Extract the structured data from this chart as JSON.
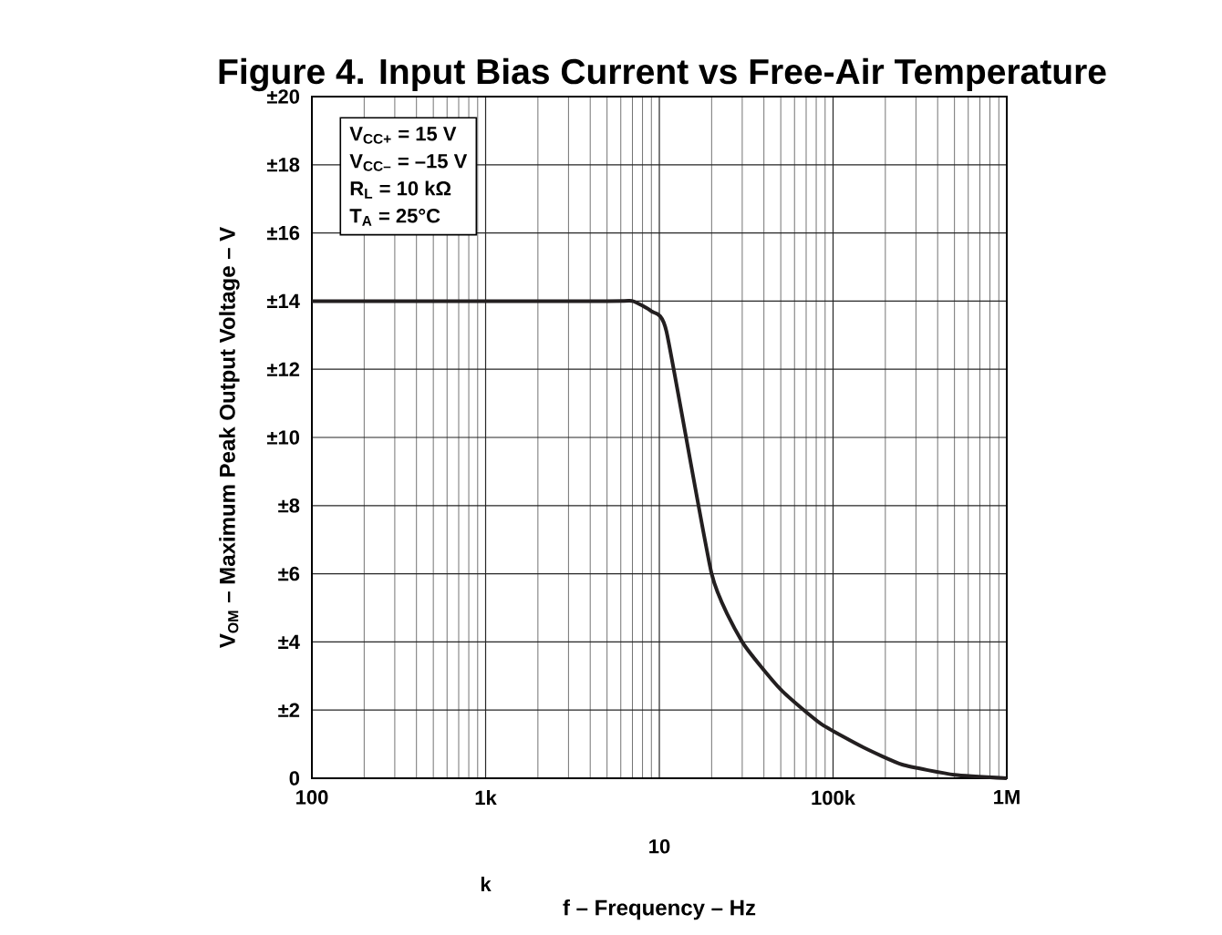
{
  "chart_data": {
    "type": "line",
    "title": "Figure 4. Input Bias Current vs Free-Air Temperature",
    "xlabel": "f – Frequency – Hz",
    "ylabel": "V$_{OM}$ – Maximum Peak Output Voltage – V",
    "x": [
      100,
      5000,
      7000,
      9000,
      11000,
      20000,
      30000,
      50000,
      85000,
      150000,
      250000,
      500000,
      1000000
    ],
    "series": [
      {
        "color": "#231f20",
        "values": [
          14,
          14,
          14,
          13.7,
          13.1,
          6,
          4,
          2.6,
          1.6,
          0.9,
          0.4,
          0.1,
          0
        ]
      }
    ],
    "log": "x",
    "xlim": [
      100,
      1000000
    ],
    "ylim": [
      0,
      20
    ],
    "xticks": [
      {
        "value": 100,
        "label": "100"
      },
      {
        "value": 1000,
        "label": "1k"
      },
      {
        "value": 10000,
        "label": null
      },
      {
        "value": 100000,
        "label": "100k"
      },
      {
        "value": 1000000,
        "label": "1M"
      }
    ],
    "yticks": [
      0,
      {
        "value": 2,
        "label": "±2"
      },
      {
        "value": 4,
        "label": "±4"
      },
      {
        "value": 6,
        "label": "±6"
      },
      {
        "value": 8,
        "label": "±8"
      },
      {
        "value": 10,
        "label": "±10"
      },
      {
        "value": 12,
        "label": "±12"
      },
      {
        "value": 14,
        "label": "±14"
      },
      {
        "value": 16,
        "label": "±16"
      },
      {
        "value": 18,
        "label": "±18"
      },
      {
        "value": 20,
        "label": "±20"
      }
    ],
    "grid": true,
    "line_style": "solid",
    "marker": "none",
    "annotations": [
      "V$_{CC+}$ = 15 V",
      "V$_{CC–}$ = –15 V",
      "R$_{L}$ = 10 kΩ",
      "T$_{A}$ = 25°C",
      "10",
      "k"
    ]
  }
}
